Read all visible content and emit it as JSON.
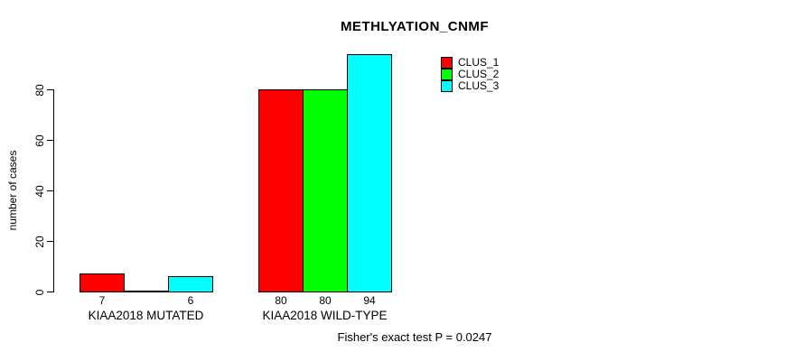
{
  "chart_data": {
    "type": "bar",
    "title": "METHLYATION_CNMF",
    "ylabel": "number of cases",
    "xlabel": "",
    "ylim": [
      0,
      95
    ],
    "yticks": [
      0,
      20,
      40,
      60,
      80
    ],
    "categories": [
      "KIAA2018 MUTATED",
      "KIAA2018 WILD-TYPE"
    ],
    "series": [
      {
        "name": "CLUS_1",
        "color": "#ff0000",
        "values": [
          7,
          80
        ]
      },
      {
        "name": "CLUS_2",
        "color": "#00ff00",
        "values": [
          0,
          80
        ]
      },
      {
        "name": "CLUS_3",
        "color": "#00ffff",
        "values": [
          6,
          94
        ]
      }
    ],
    "bar_labels": [
      [
        "7",
        "",
        "6"
      ],
      [
        "80",
        "80",
        "94"
      ]
    ],
    "annotation": "Fisher's exact test P = 0.0247",
    "legend_position": "top-right",
    "grid": false,
    "background": "#ffffff",
    "bar_border_color": "#000000"
  }
}
